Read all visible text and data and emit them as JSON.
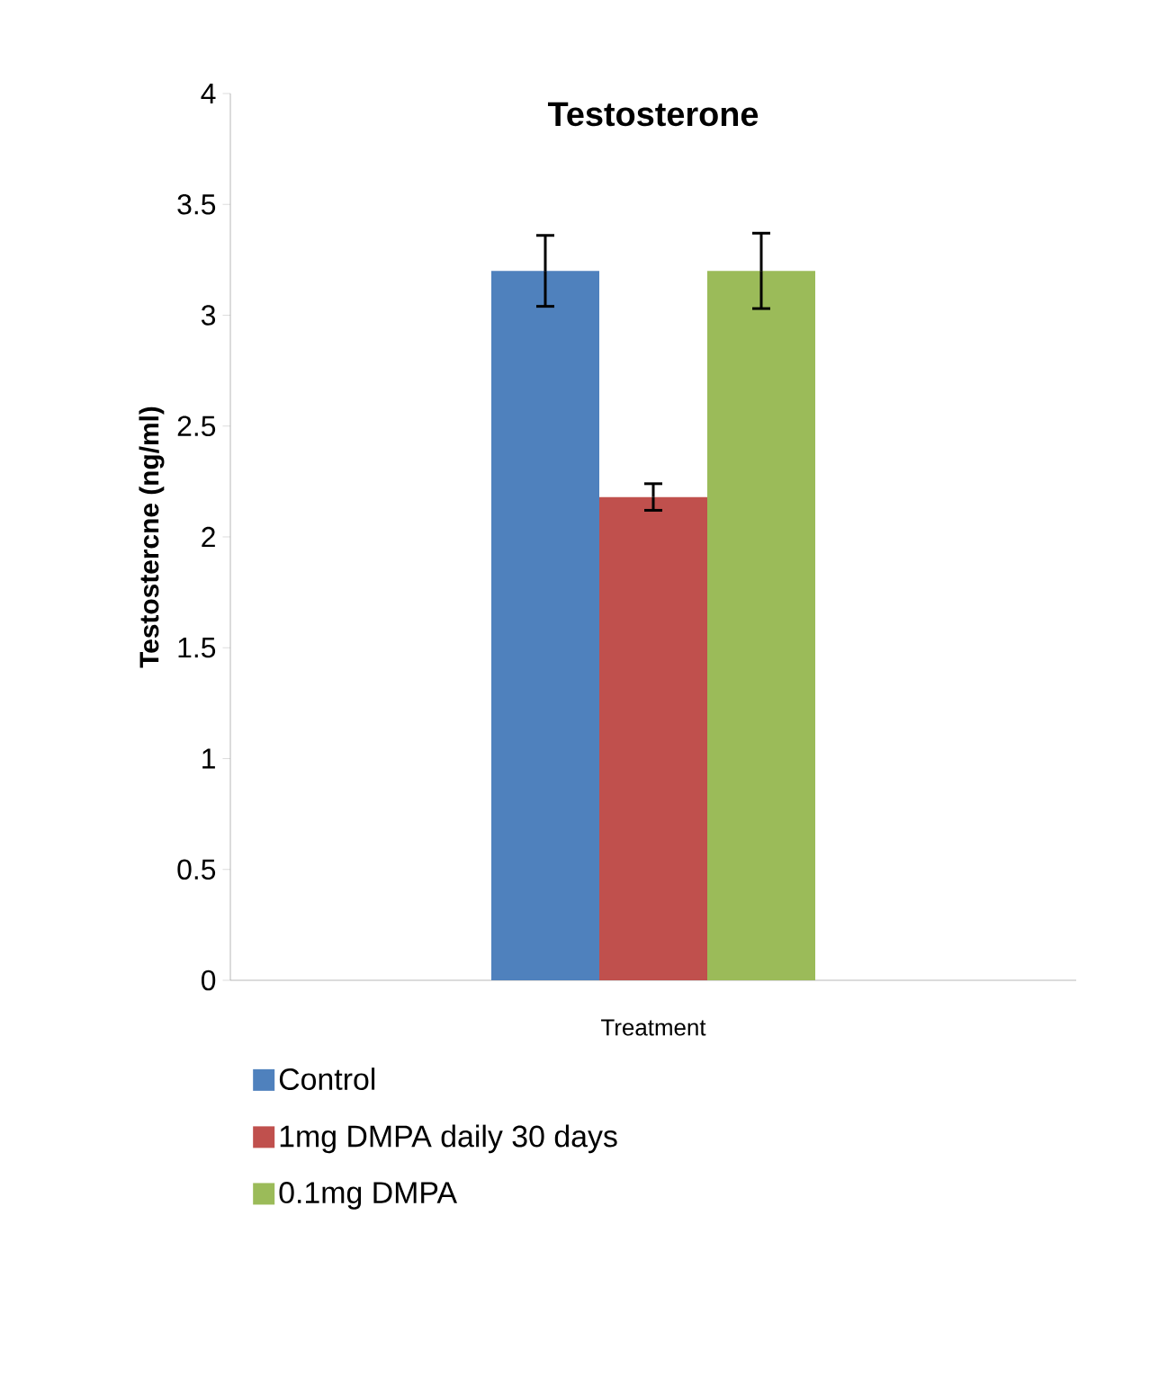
{
  "chart_data": {
    "type": "bar",
    "title": "Testosterone",
    "ylabel": "Testostercne (ng/ml)",
    "categories": [
      "Treatment"
    ],
    "series": [
      {
        "name": "Control",
        "color": "#4f81bd",
        "values": [
          3.2
        ],
        "errors": [
          0.16
        ]
      },
      {
        "name": "1mg DMPA daily 30 days",
        "color": "#c0504d",
        "values": [
          2.18
        ],
        "errors": [
          0.06
        ]
      },
      {
        "name": "0.1mg DMPA",
        "color": "#9bbb59",
        "values": [
          3.2
        ],
        "errors": [
          0.17
        ]
      }
    ],
    "ylim": [
      0,
      4
    ],
    "yticks": [
      0,
      0.5,
      1,
      1.5,
      2,
      2.5,
      3,
      3.5,
      4
    ],
    "grid": false,
    "legend": "bottom"
  }
}
